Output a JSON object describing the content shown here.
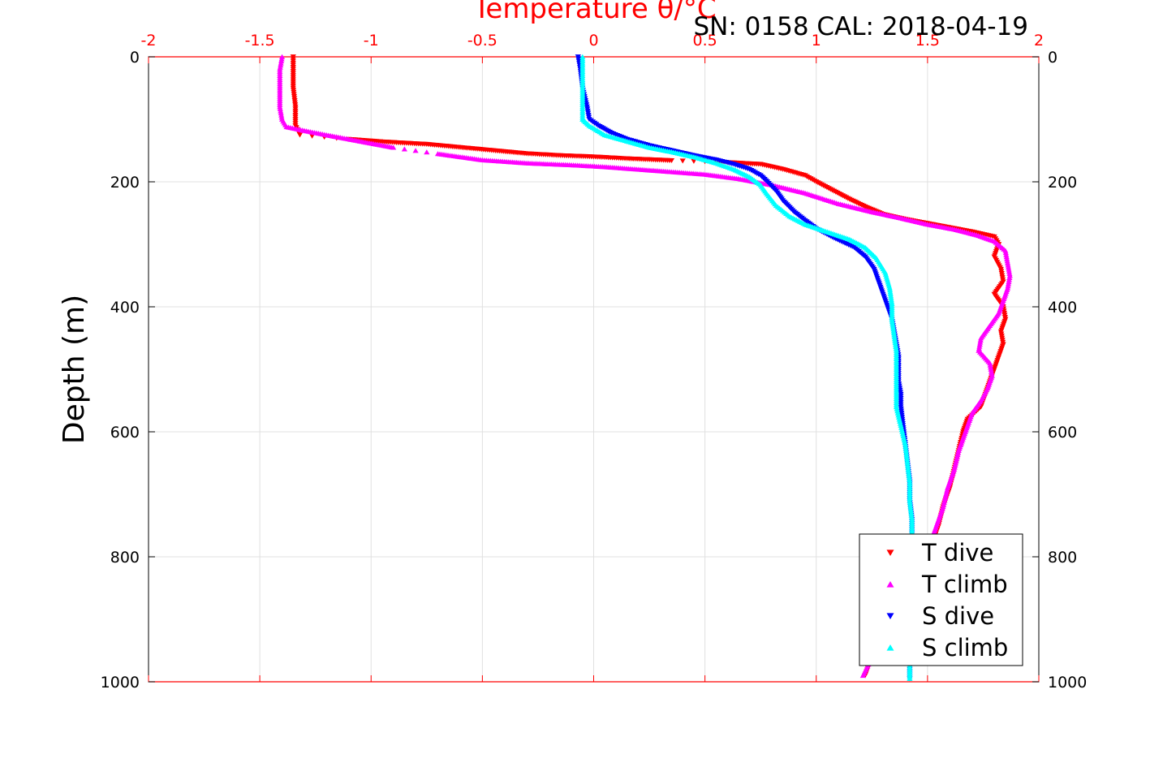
{
  "chart_data": {
    "type": "scatter",
    "title": "Temperature θ/°C",
    "subtitle": "SN: 0158  CAL: 2018-04-19",
    "xlabel": "Temperature θ/°C",
    "ylabel": "Depth (m)",
    "xlim": [
      -2,
      2
    ],
    "ylim": [
      0,
      1000
    ],
    "y_reversed": true,
    "x_axis_location": "top",
    "grid": true,
    "legend_position": "bottom-right",
    "x_ticks": [
      "-2",
      "-1.5",
      "-1",
      "-0.5",
      "0",
      "0.5",
      "1",
      "1.5",
      "2"
    ],
    "x_tick_values": [
      -2,
      -1.5,
      -1,
      -0.5,
      0,
      0.5,
      1,
      1.5,
      2
    ],
    "y_ticks": [
      "0",
      "200",
      "400",
      "600",
      "800",
      "1000"
    ],
    "y_tick_values": [
      0,
      200,
      400,
      600,
      800,
      1000
    ],
    "colors": {
      "axis_top": "#ff0000",
      "grid": "#e0e0e0"
    },
    "series": [
      {
        "name": "T dive",
        "color": "#ff0000",
        "marker": "triangle-down",
        "points": [
          [
            -1.35,
            0
          ],
          [
            -1.35,
            20
          ],
          [
            -1.35,
            50
          ],
          [
            -1.34,
            80
          ],
          [
            -1.34,
            110
          ],
          [
            -1.32,
            125
          ],
          [
            -1.1,
            132
          ],
          [
            -0.95,
            136
          ],
          [
            -0.75,
            140
          ],
          [
            -0.6,
            145
          ],
          [
            -0.45,
            150
          ],
          [
            -0.3,
            155
          ],
          [
            -0.15,
            158
          ],
          [
            0.0,
            160
          ],
          [
            0.15,
            163
          ],
          [
            0.35,
            166
          ],
          [
            0.55,
            168
          ],
          [
            0.75,
            172
          ],
          [
            0.85,
            180
          ],
          [
            0.95,
            190
          ],
          [
            1.0,
            200
          ],
          [
            1.08,
            215
          ],
          [
            1.15,
            228
          ],
          [
            1.22,
            240
          ],
          [
            1.3,
            252
          ],
          [
            1.4,
            260
          ],
          [
            1.55,
            270
          ],
          [
            1.7,
            280
          ],
          [
            1.8,
            288
          ],
          [
            1.82,
            300
          ],
          [
            1.8,
            320
          ],
          [
            1.83,
            340
          ],
          [
            1.84,
            360
          ],
          [
            1.8,
            380
          ],
          [
            1.84,
            400
          ],
          [
            1.85,
            420
          ],
          [
            1.83,
            440
          ],
          [
            1.84,
            460
          ],
          [
            1.82,
            480
          ],
          [
            1.8,
            500
          ],
          [
            1.78,
            520
          ],
          [
            1.76,
            540
          ],
          [
            1.74,
            560
          ],
          [
            1.68,
            580
          ],
          [
            1.66,
            600
          ],
          [
            1.64,
            630
          ],
          [
            1.62,
            660
          ],
          [
            1.6,
            690
          ],
          [
            1.57,
            720
          ],
          [
            1.55,
            750
          ],
          [
            1.52,
            780
          ],
          [
            1.48,
            810
          ],
          [
            1.43,
            840
          ],
          [
            1.38,
            870
          ],
          [
            1.33,
            900
          ],
          [
            1.29,
            930
          ],
          [
            1.25,
            960
          ],
          [
            1.22,
            990
          ]
        ]
      },
      {
        "name": "T climb",
        "color": "#ff00ff",
        "marker": "triangle-up",
        "points": [
          [
            -1.4,
            0
          ],
          [
            -1.41,
            20
          ],
          [
            -1.41,
            50
          ],
          [
            -1.41,
            80
          ],
          [
            -1.4,
            100
          ],
          [
            -1.38,
            112
          ],
          [
            -1.3,
            118
          ],
          [
            -1.2,
            125
          ],
          [
            -1.05,
            135
          ],
          [
            -0.9,
            145
          ],
          [
            -0.7,
            155
          ],
          [
            -0.5,
            165
          ],
          [
            -0.3,
            170
          ],
          [
            -0.1,
            173
          ],
          [
            0.05,
            176
          ],
          [
            0.2,
            180
          ],
          [
            0.35,
            184
          ],
          [
            0.5,
            188
          ],
          [
            0.65,
            195
          ],
          [
            0.8,
            205
          ],
          [
            0.95,
            218
          ],
          [
            1.1,
            235
          ],
          [
            1.25,
            248
          ],
          [
            1.38,
            258
          ],
          [
            1.5,
            268
          ],
          [
            1.62,
            276
          ],
          [
            1.72,
            285
          ],
          [
            1.8,
            295
          ],
          [
            1.85,
            310
          ],
          [
            1.86,
            330
          ],
          [
            1.87,
            350
          ],
          [
            1.86,
            370
          ],
          [
            1.84,
            390
          ],
          [
            1.82,
            410
          ],
          [
            1.78,
            430
          ],
          [
            1.74,
            450
          ],
          [
            1.73,
            470
          ],
          [
            1.78,
            490
          ],
          [
            1.79,
            510
          ],
          [
            1.77,
            530
          ],
          [
            1.74,
            550
          ],
          [
            1.7,
            570
          ],
          [
            1.67,
            600
          ],
          [
            1.64,
            630
          ],
          [
            1.62,
            660
          ],
          [
            1.59,
            690
          ],
          [
            1.57,
            720
          ],
          [
            1.54,
            750
          ],
          [
            1.51,
            780
          ],
          [
            1.47,
            810
          ],
          [
            1.43,
            840
          ],
          [
            1.38,
            870
          ],
          [
            1.34,
            900
          ],
          [
            1.29,
            930
          ],
          [
            1.25,
            960
          ],
          [
            1.21,
            990
          ]
        ]
      },
      {
        "name": "S dive",
        "color": "#0000ff",
        "marker": "triangle-down",
        "points": [
          [
            -0.07,
            0
          ],
          [
            -0.06,
            20
          ],
          [
            -0.05,
            50
          ],
          [
            -0.03,
            80
          ],
          [
            -0.02,
            100
          ],
          [
            0.02,
            110
          ],
          [
            0.08,
            122
          ],
          [
            0.15,
            132
          ],
          [
            0.25,
            142
          ],
          [
            0.35,
            150
          ],
          [
            0.45,
            158
          ],
          [
            0.55,
            165
          ],
          [
            0.63,
            172
          ],
          [
            0.7,
            180
          ],
          [
            0.75,
            190
          ],
          [
            0.78,
            200
          ],
          [
            0.82,
            215
          ],
          [
            0.85,
            230
          ],
          [
            0.9,
            248
          ],
          [
            0.95,
            262
          ],
          [
            1.0,
            275
          ],
          [
            1.08,
            290
          ],
          [
            1.17,
            305
          ],
          [
            1.22,
            320
          ],
          [
            1.26,
            340
          ],
          [
            1.28,
            360
          ],
          [
            1.3,
            380
          ],
          [
            1.32,
            400
          ],
          [
            1.34,
            420
          ],
          [
            1.35,
            440
          ],
          [
            1.36,
            460
          ],
          [
            1.37,
            480
          ],
          [
            1.37,
            500
          ],
          [
            1.37,
            520
          ],
          [
            1.38,
            540
          ],
          [
            1.38,
            560
          ],
          [
            1.39,
            590
          ],
          [
            1.4,
            620
          ],
          [
            1.41,
            650
          ],
          [
            1.42,
            680
          ],
          [
            1.42,
            710
          ],
          [
            1.43,
            740
          ],
          [
            1.43,
            770
          ],
          [
            1.43,
            800
          ],
          [
            1.43,
            830
          ],
          [
            1.43,
            860
          ],
          [
            1.43,
            890
          ],
          [
            1.43,
            920
          ],
          [
            1.43,
            950
          ],
          [
            1.42,
            980
          ],
          [
            1.42,
            995
          ]
        ]
      },
      {
        "name": "S climb",
        "color": "#00ffff",
        "marker": "triangle-up",
        "points": [
          [
            -0.05,
            0
          ],
          [
            -0.05,
            20
          ],
          [
            -0.05,
            50
          ],
          [
            -0.05,
            80
          ],
          [
            -0.05,
            100
          ],
          [
            -0.02,
            110
          ],
          [
            0.05,
            125
          ],
          [
            0.15,
            135
          ],
          [
            0.25,
            145
          ],
          [
            0.35,
            152
          ],
          [
            0.45,
            160
          ],
          [
            0.55,
            170
          ],
          [
            0.63,
            180
          ],
          [
            0.7,
            192
          ],
          [
            0.75,
            205
          ],
          [
            0.78,
            220
          ],
          [
            0.82,
            238
          ],
          [
            0.88,
            255
          ],
          [
            0.95,
            268
          ],
          [
            1.05,
            280
          ],
          [
            1.15,
            292
          ],
          [
            1.22,
            305
          ],
          [
            1.27,
            322
          ],
          [
            1.31,
            345
          ],
          [
            1.33,
            370
          ],
          [
            1.34,
            395
          ],
          [
            1.34,
            420
          ],
          [
            1.35,
            445
          ],
          [
            1.36,
            470
          ],
          [
            1.36,
            500
          ],
          [
            1.36,
            530
          ],
          [
            1.36,
            560
          ],
          [
            1.38,
            590
          ],
          [
            1.4,
            620
          ],
          [
            1.41,
            650
          ],
          [
            1.42,
            680
          ],
          [
            1.42,
            710
          ],
          [
            1.43,
            740
          ],
          [
            1.43,
            770
          ],
          [
            1.43,
            800
          ],
          [
            1.43,
            830
          ],
          [
            1.43,
            860
          ],
          [
            1.43,
            890
          ],
          [
            1.42,
            920
          ],
          [
            1.42,
            950
          ],
          [
            1.42,
            980
          ],
          [
            1.42,
            995
          ]
        ]
      }
    ]
  }
}
